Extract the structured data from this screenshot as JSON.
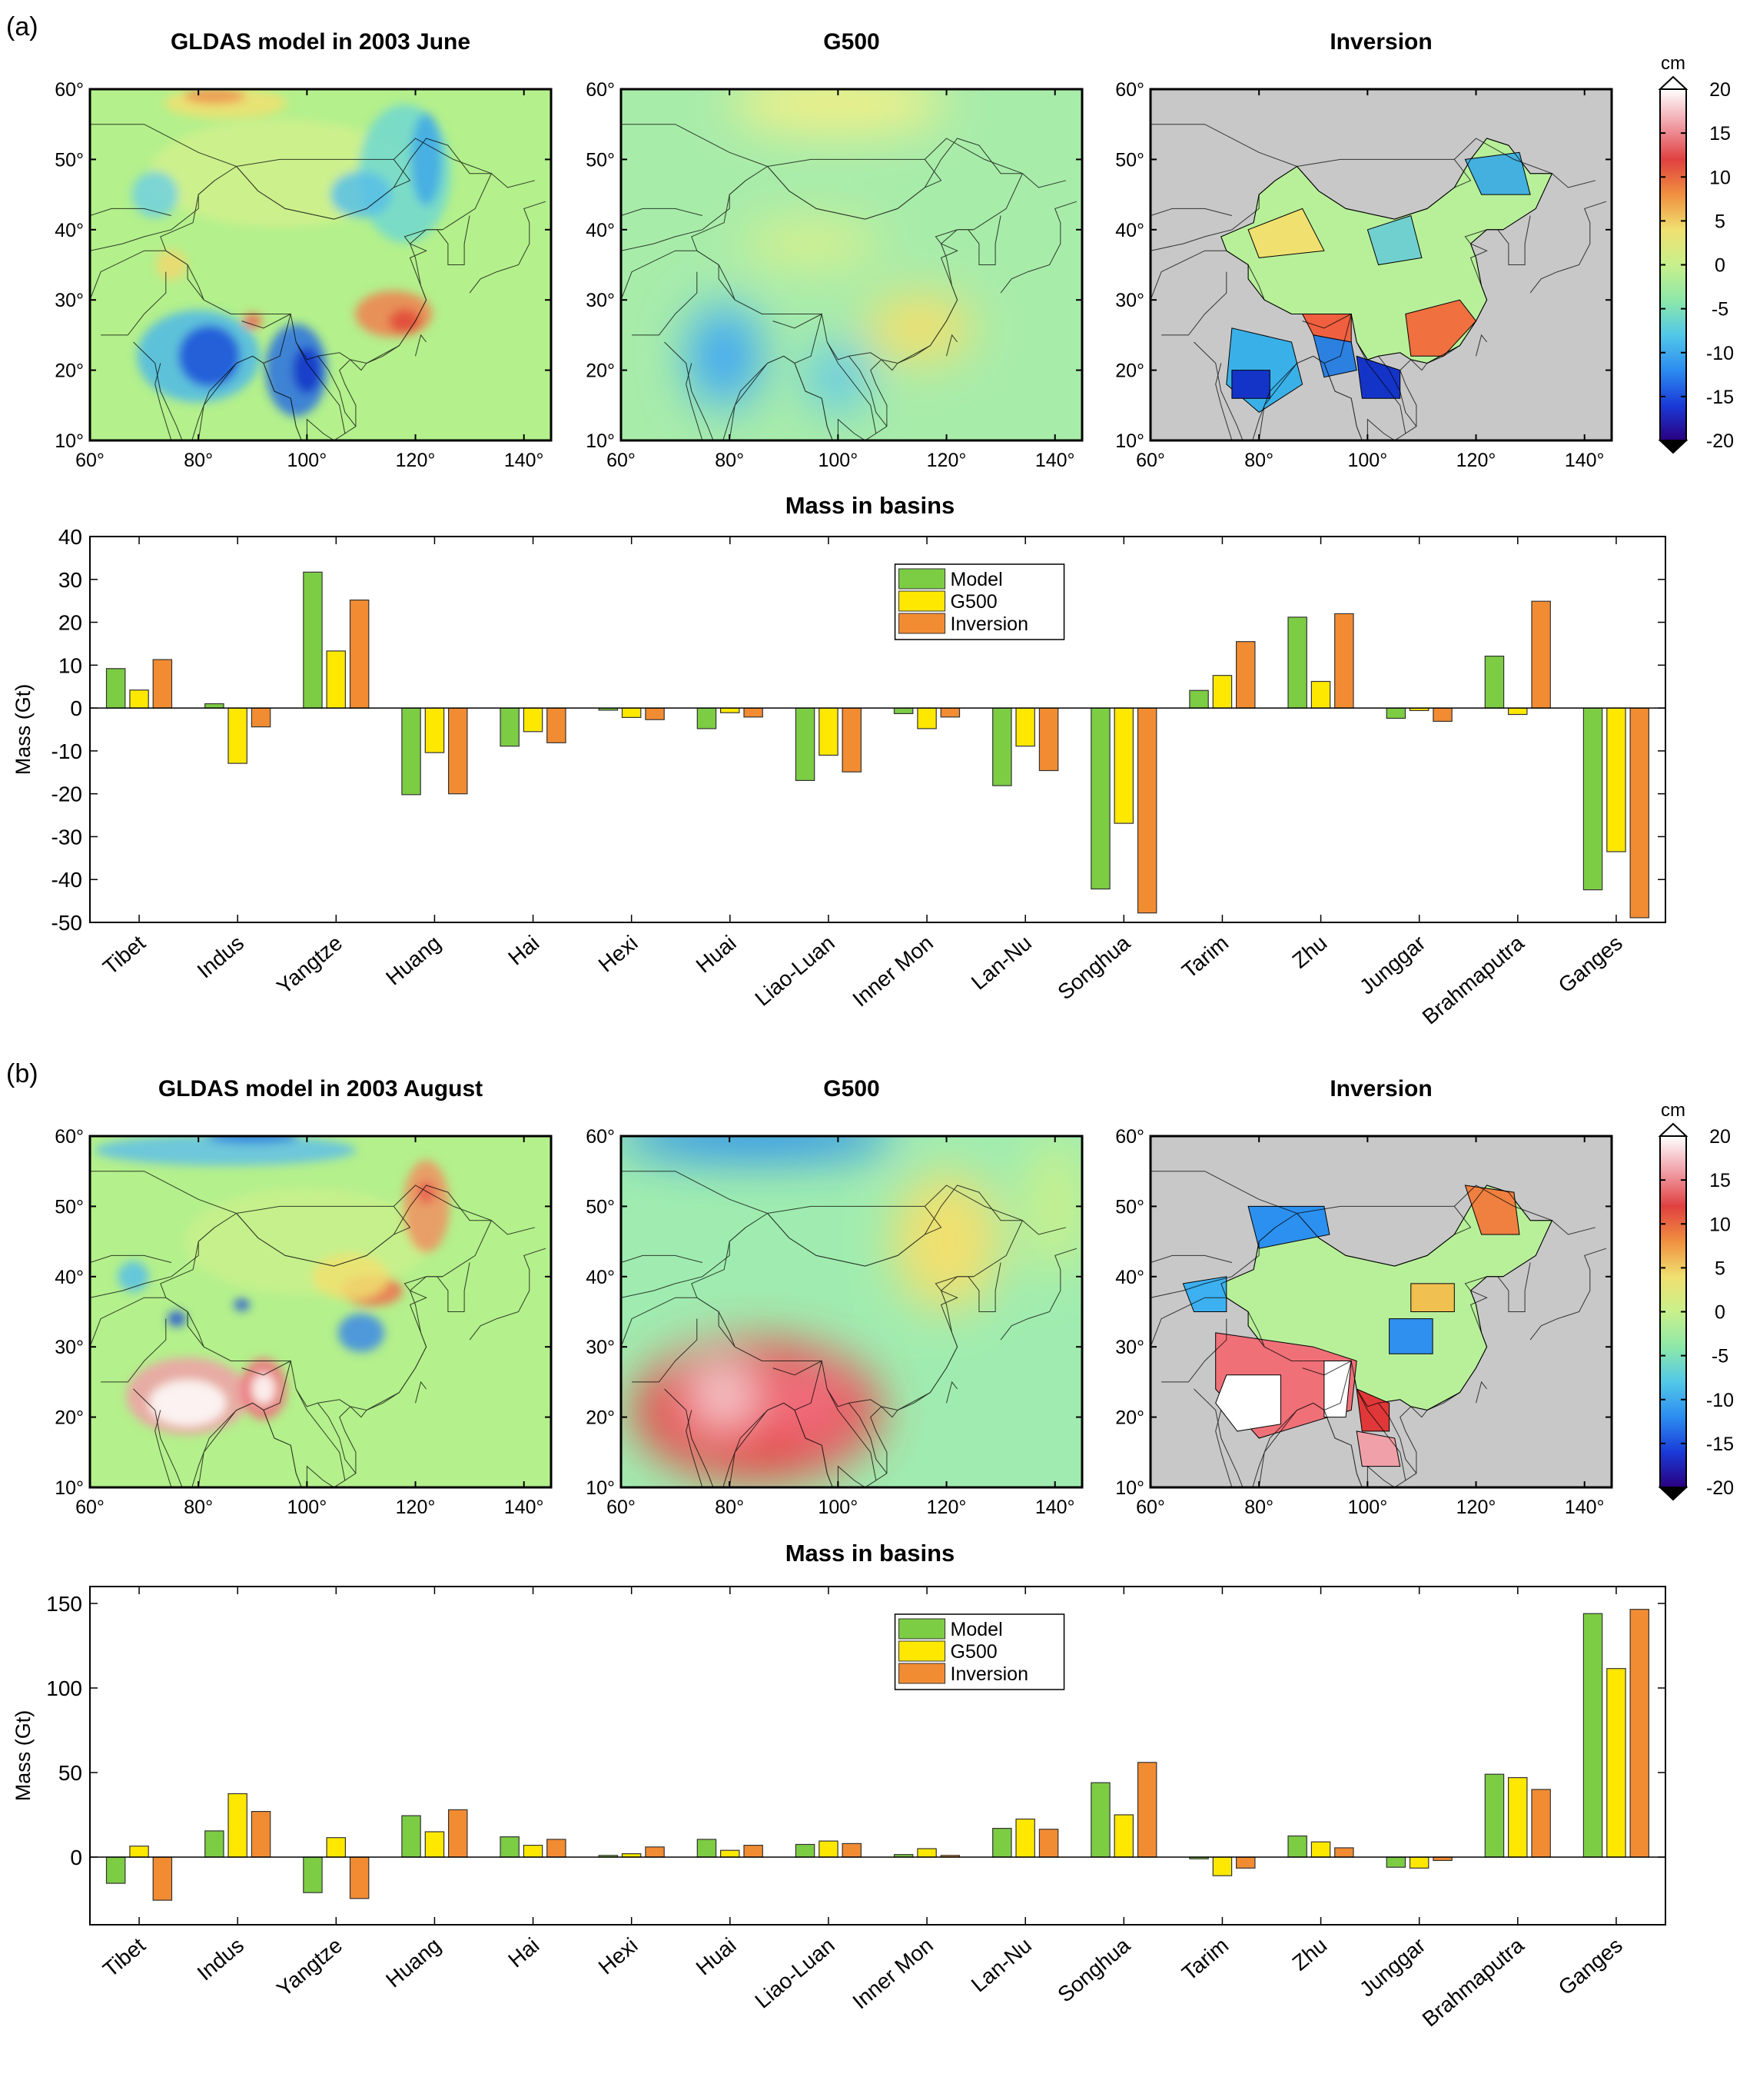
{
  "panels": [
    {
      "label": "(a)",
      "maps": [
        {
          "title": "GLDAS model in 2003 June",
          "kind": "model",
          "palette": "june"
        },
        {
          "title": "G500",
          "kind": "g500",
          "palette": "june"
        },
        {
          "title": "Inversion",
          "kind": "inversion",
          "palette": "june"
        }
      ],
      "chart_title": "Mass in  basins",
      "ylabel": "Mass (Gt)"
    },
    {
      "label": "(b)",
      "maps": [
        {
          "title": "GLDAS model in 2003 August",
          "kind": "model",
          "palette": "aug"
        },
        {
          "title": "G500",
          "kind": "g500",
          "palette": "aug"
        },
        {
          "title": "Inversion",
          "kind": "inversion",
          "palette": "aug"
        }
      ],
      "chart_title": "Mass in  basins",
      "ylabel": "Mass (Gt)"
    }
  ],
  "map_axes": {
    "lon_ticks": [
      "60°",
      "80°",
      "100°",
      "120°",
      "140°"
    ],
    "lat_ticks": [
      "60°",
      "50°",
      "40°",
      "30°",
      "20°",
      "10°"
    ],
    "lon_range": [
      60,
      145
    ],
    "lat_range": [
      10,
      60
    ]
  },
  "colorbar": {
    "unit": "cm",
    "ticks": [
      "20",
      "15",
      "10",
      "5",
      "0",
      "-5",
      "-10",
      "-15",
      "-20"
    ],
    "range": [
      -20,
      20
    ],
    "stops": [
      "#2a0080",
      "#1a3ad8",
      "#2c8cf0",
      "#52c8e8",
      "#8ee8a8",
      "#c8f08c",
      "#f0e070",
      "#f09040",
      "#e04040",
      "#f0a0a8",
      "#ffffff"
    ]
  },
  "map_colors": {
    "land_default": "#b4f08c",
    "inversion_background": "#c8c8c8",
    "border": "#000000"
  },
  "chart_data": [
    {
      "type": "bar",
      "title": "Mass in  basins",
      "ylabel": "Mass (Gt)",
      "ylim": [
        -50,
        40
      ],
      "yticks": [
        40,
        30,
        20,
        10,
        0,
        -10,
        -20,
        -30,
        -40,
        -50
      ],
      "categories": [
        "Tibet",
        "Indus",
        "Yangtze",
        "Huang",
        "Hai",
        "Hexi",
        "Huai",
        "Liao-Luan",
        "Inner Mon",
        "Lan-Nu",
        "Songhua",
        "Tarim",
        "Zhu",
        "Junggar",
        "Brahmaputra",
        "Ganges"
      ],
      "series": [
        {
          "name": "Model",
          "color": "#7ccc44",
          "values": [
            9.2,
            1,
            31.7,
            -20.2,
            -8.9,
            -0.5,
            -4.8,
            -16.9,
            -1.3,
            -18.1,
            -42.2,
            4.1,
            21.2,
            -2.4,
            12.1,
            -42.4
          ]
        },
        {
          "name": "G500",
          "color": "#ffe800",
          "values": [
            4.2,
            -12.9,
            13.3,
            -10.4,
            -5.5,
            -2.2,
            -1.1,
            -11,
            -4.8,
            -8.9,
            -26.9,
            7.6,
            6.2,
            -0.6,
            -1.5,
            -33.5
          ]
        },
        {
          "name": "Inversion",
          "color": "#f28c32",
          "values": [
            11.3,
            -4.4,
            25.2,
            -20,
            -8.1,
            -2.7,
            -2.1,
            -14.9,
            -2.1,
            -14.6,
            -47.8,
            15.5,
            22,
            -3.1,
            24.9,
            -48.9
          ]
        }
      ],
      "legend": "top-center",
      "grid": false
    },
    {
      "type": "bar",
      "title": "Mass in  basins",
      "ylabel": "Mass (Gt)",
      "ylim": [
        -40,
        160
      ],
      "yticks": [
        150,
        100,
        50,
        0
      ],
      "categories": [
        "Tibet",
        "Indus",
        "Yangtze",
        "Huang",
        "Hai",
        "Hexi",
        "Huai",
        "Liao-Luan",
        "Inner Mon",
        "Lan-Nu",
        "Songhua",
        "Tarim",
        "Zhu",
        "Junggar",
        "Brahmaputra",
        "Ganges"
      ],
      "series": [
        {
          "name": "Model",
          "color": "#7ccc44",
          "values": [
            -15.5,
            15.5,
            -21,
            24.5,
            12,
            1,
            10.5,
            7.5,
            1.5,
            17,
            44,
            -1,
            12.5,
            -6,
            49,
            144
          ]
        },
        {
          "name": "G500",
          "color": "#ffe800",
          "values": [
            6.5,
            37.5,
            11.5,
            15,
            7,
            2,
            4,
            9.5,
            5,
            22.5,
            25,
            -11,
            9,
            -6.5,
            47,
            111.5
          ]
        },
        {
          "name": "Inversion",
          "color": "#f28c32",
          "values": [
            -25.5,
            27,
            -24.5,
            28,
            10.5,
            6,
            7,
            8,
            1,
            16.5,
            56,
            -6.5,
            5.5,
            -2,
            40,
            146.5
          ]
        }
      ],
      "legend": "top-center",
      "grid": false
    }
  ]
}
